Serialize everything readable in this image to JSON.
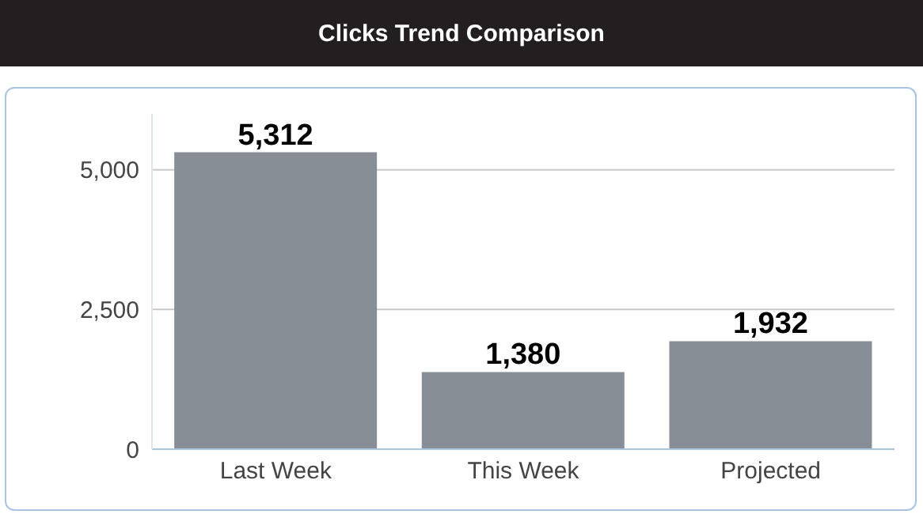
{
  "chart_data": {
    "type": "bar",
    "title": "Clicks Trend Comparison",
    "categories": [
      "Last Week",
      "This Week",
      "Projected"
    ],
    "values": [
      5312,
      1380,
      1932
    ],
    "value_labels": [
      "5,312",
      "1,380",
      "1,932"
    ],
    "color": "#878e95",
    "ylim": [
      0,
      6000
    ],
    "yticks": [
      0,
      {
        "value": 2500,
        "label": "2,500"
      },
      {
        "value": 5000,
        "label": "5,000"
      }
    ],
    "grid": "y",
    "legend": false
  }
}
